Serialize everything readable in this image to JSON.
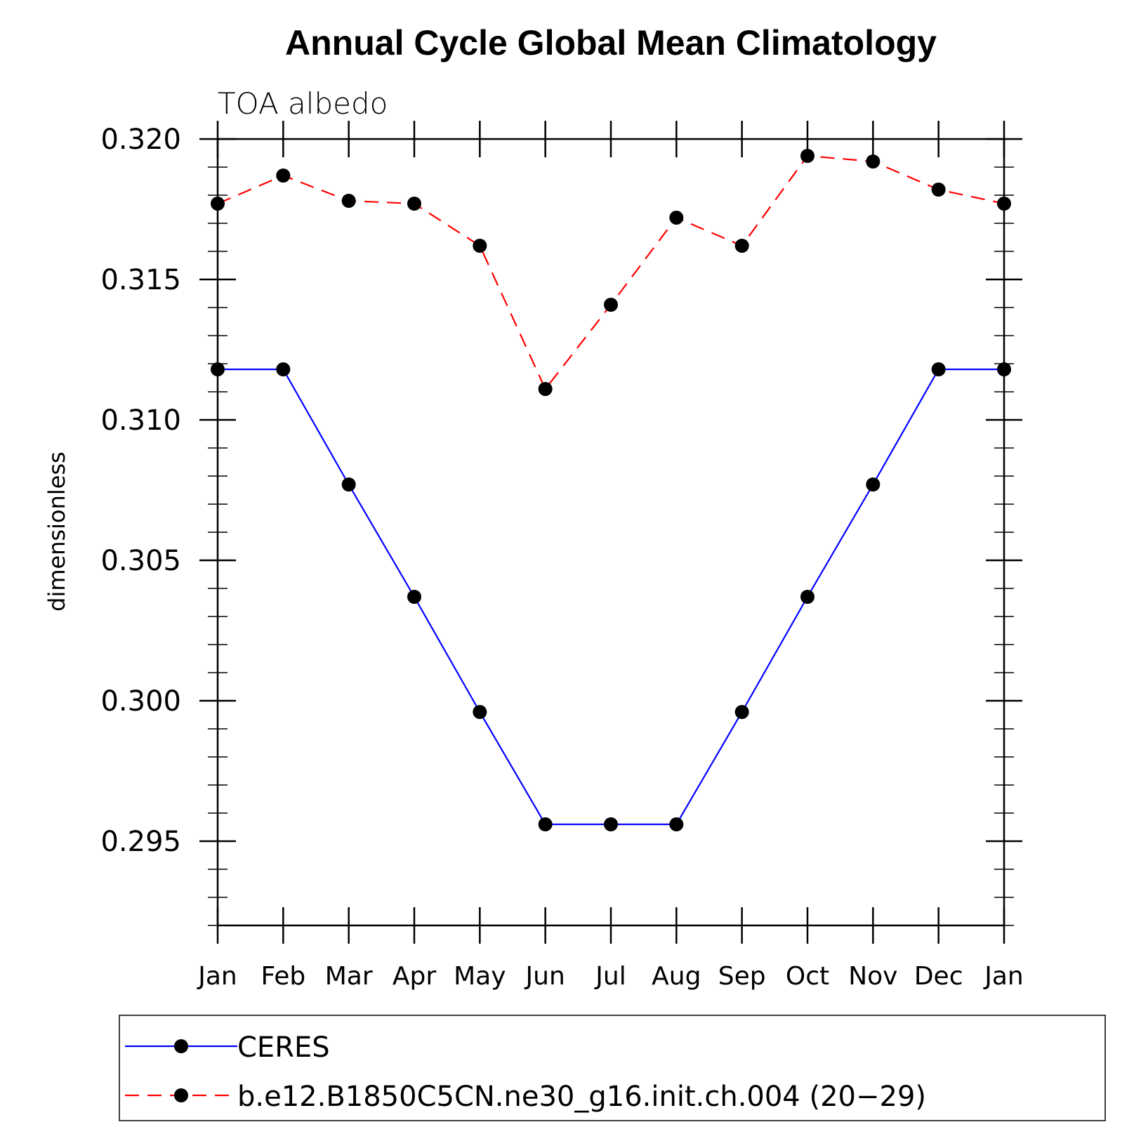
{
  "chart_data": {
    "type": "line",
    "title": "Annual Cycle Global Mean Climatology",
    "subtitle": "TOA albedo",
    "xlabel": "",
    "ylabel": "dimensionless",
    "categories": [
      "Jan",
      "Feb",
      "Mar",
      "Apr",
      "May",
      "Jun",
      "Jul",
      "Aug",
      "Sep",
      "Oct",
      "Nov",
      "Dec",
      "Jan"
    ],
    "ylim": [
      0.292,
      0.32
    ],
    "yticks": [
      0.295,
      0.3,
      0.305,
      0.31,
      0.315,
      0.32
    ],
    "ytick_labels": [
      "0.295",
      "0.300",
      "0.305",
      "0.310",
      "0.315",
      "0.320"
    ],
    "y_minor_step": 0.001,
    "grid": false,
    "legend_position": "bottom",
    "series": [
      {
        "name": "CERES",
        "color": "#0000ff",
        "line_style": "solid",
        "marker": "filled-circle",
        "values": [
          0.3118,
          0.3118,
          0.3077,
          0.3037,
          0.2996,
          0.2956,
          0.2956,
          0.2956,
          0.2996,
          0.3037,
          0.3077,
          0.3118,
          0.3118
        ]
      },
      {
        "name": "b.e12.B1850C5CN.ne30_g16.init.ch.004 (20−29)",
        "color": "#ff0000",
        "line_style": "dashed",
        "marker": "filled-circle",
        "values": [
          0.3177,
          0.3187,
          0.3178,
          0.3177,
          0.3162,
          0.3111,
          0.3141,
          0.3172,
          0.3162,
          0.3194,
          0.3192,
          0.3182,
          0.3177
        ]
      }
    ]
  }
}
